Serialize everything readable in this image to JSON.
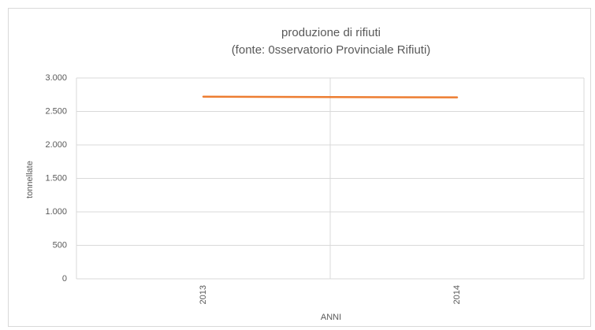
{
  "chart_data": {
    "type": "line",
    "title": "produzione di rifiuti",
    "subtitle": "(fonte: 0sservatorio Provinciale Rifiuti)",
    "x_label": "ANNI",
    "y_label": "tonnellate",
    "categories": [
      "2013",
      "2014"
    ],
    "values": [
      2720,
      2710
    ],
    "color": "#ed7d31",
    "ylim": [
      0,
      3000
    ],
    "yticks": [
      0,
      500,
      {
        "value": 1000,
        "label": "1.000"
      },
      {
        "value": 1500,
        "label": "1.500"
      },
      {
        "value": 2000,
        "label": "2.000"
      },
      {
        "value": 2500,
        "label": "2.500"
      },
      {
        "value": 3000,
        "label": "3.000"
      }
    ],
    "grid": true
  }
}
